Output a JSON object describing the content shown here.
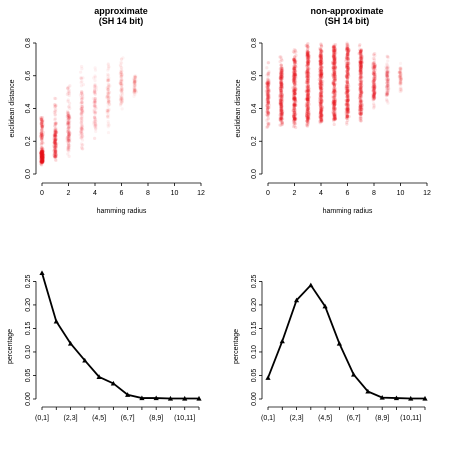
{
  "chart_data": [
    {
      "type": "scatter",
      "title": "approximate",
      "subtitle": "(SH 14 bit)",
      "xlabel": "hamming radius",
      "ylabel": "euclidean distance",
      "xlim": [
        0,
        12
      ],
      "ylim": [
        0,
        0.8
      ],
      "xticks": [
        0,
        2,
        4,
        6,
        8,
        10,
        12
      ],
      "yticks": [
        0.0,
        0.2,
        0.4,
        0.6,
        0.8
      ],
      "color": "#e8141c",
      "grid": false,
      "columns": [
        {
          "x": 0,
          "ymin": 0.05,
          "ymax": 0.35,
          "dense_min": 0.07,
          "dense_max": 0.14,
          "intensity": 1.0
        },
        {
          "x": 1,
          "ymin": 0.08,
          "ymax": 0.47,
          "dense_min": 0.1,
          "dense_max": 0.26,
          "intensity": 0.55
        },
        {
          "x": 2,
          "ymin": 0.1,
          "ymax": 0.55,
          "dense_min": 0.15,
          "dense_max": 0.38,
          "intensity": 0.35
        },
        {
          "x": 3,
          "ymin": 0.15,
          "ymax": 0.68,
          "dense_min": 0.22,
          "dense_max": 0.5,
          "intensity": 0.22
        },
        {
          "x": 4,
          "ymin": 0.2,
          "ymax": 0.65,
          "dense_min": 0.28,
          "dense_max": 0.55,
          "intensity": 0.15
        },
        {
          "x": 5,
          "ymin": 0.25,
          "ymax": 0.72,
          "dense_min": 0.35,
          "dense_max": 0.6,
          "intensity": 0.12
        },
        {
          "x": 6,
          "ymin": 0.35,
          "ymax": 0.72,
          "dense_min": 0.42,
          "dense_max": 0.62,
          "intensity": 0.12
        },
        {
          "x": 7,
          "ymin": 0.45,
          "ymax": 0.62,
          "dense_min": 0.5,
          "dense_max": 0.6,
          "intensity": 0.05
        }
      ]
    },
    {
      "type": "scatter",
      "title": "non-approximate",
      "subtitle": "(SH 14 bit)",
      "xlabel": "hamming radius",
      "ylabel": "euclidean distance",
      "xlim": [
        0,
        12
      ],
      "ylim": [
        0,
        0.8
      ],
      "xticks": [
        0,
        2,
        4,
        6,
        8,
        10,
        12
      ],
      "yticks": [
        0.0,
        0.2,
        0.4,
        0.6,
        0.8
      ],
      "color": "#e8141c",
      "grid": false,
      "columns": [
        {
          "x": 0,
          "ymin": 0.28,
          "ymax": 0.68,
          "dense_min": 0.36,
          "dense_max": 0.58,
          "intensity": 0.55
        },
        {
          "x": 1,
          "ymin": 0.28,
          "ymax": 0.72,
          "dense_min": 0.33,
          "dense_max": 0.65,
          "intensity": 0.85
        },
        {
          "x": 2,
          "ymin": 0.28,
          "ymax": 0.76,
          "dense_min": 0.32,
          "dense_max": 0.7,
          "intensity": 0.95
        },
        {
          "x": 3,
          "ymin": 0.28,
          "ymax": 0.8,
          "dense_min": 0.32,
          "dense_max": 0.75,
          "intensity": 1.0
        },
        {
          "x": 4,
          "ymin": 0.3,
          "ymax": 0.8,
          "dense_min": 0.32,
          "dense_max": 0.76,
          "intensity": 1.0
        },
        {
          "x": 5,
          "ymin": 0.3,
          "ymax": 0.8,
          "dense_min": 0.33,
          "dense_max": 0.78,
          "intensity": 1.0
        },
        {
          "x": 6,
          "ymin": 0.3,
          "ymax": 0.8,
          "dense_min": 0.34,
          "dense_max": 0.78,
          "intensity": 0.95
        },
        {
          "x": 7,
          "ymin": 0.32,
          "ymax": 0.8,
          "dense_min": 0.36,
          "dense_max": 0.76,
          "intensity": 0.9
        },
        {
          "x": 8,
          "ymin": 0.38,
          "ymax": 0.74,
          "dense_min": 0.45,
          "dense_max": 0.68,
          "intensity": 0.55
        },
        {
          "x": 9,
          "ymin": 0.42,
          "ymax": 0.72,
          "dense_min": 0.48,
          "dense_max": 0.65,
          "intensity": 0.25
        },
        {
          "x": 10,
          "ymin": 0.5,
          "ymax": 0.68,
          "dense_min": 0.55,
          "dense_max": 0.65,
          "intensity": 0.08
        }
      ]
    },
    {
      "type": "line",
      "title": "",
      "ylabel": "percentage",
      "xlabel": "",
      "categories": [
        "(0,1]",
        "(1,2]",
        "(2,3]",
        "(3,4]",
        "(4,5]",
        "(5,6]",
        "(6,7]",
        "(7,8]",
        "(8,9]",
        "(9,10]",
        "(10,11]",
        "(11,12]"
      ],
      "tick_labels_shown": [
        "(0,1]",
        "(2,3]",
        "(4,5]",
        "(6,7]",
        "(8,9]",
        "(10,11]"
      ],
      "yticks": [
        0.0,
        0.05,
        0.1,
        0.15,
        0.2,
        0.25
      ],
      "ylim": [
        0,
        0.27
      ],
      "series": [
        {
          "marker": "triangle",
          "values": [
            0.268,
            0.165,
            0.118,
            0.082,
            0.047,
            0.033,
            0.009,
            0.002,
            0.002,
            0.001,
            0.001,
            0.001
          ]
        }
      ]
    },
    {
      "type": "line",
      "title": "",
      "ylabel": "percentage",
      "xlabel": "",
      "categories": [
        "(0,1]",
        "(1,2]",
        "(2,3]",
        "(3,4]",
        "(4,5]",
        "(5,6]",
        "(6,7]",
        "(7,8]",
        "(8,9]",
        "(9,10]",
        "(10,11]",
        "(11,12]"
      ],
      "tick_labels_shown": [
        "(0,1]",
        "(2,3]",
        "(4,5]",
        "(6,7]",
        "(8,9]",
        "(10,11]"
      ],
      "yticks": [
        0.0,
        0.05,
        0.1,
        0.15,
        0.2,
        0.25
      ],
      "ylim": [
        0,
        0.27
      ],
      "series": [
        {
          "marker": "triangle",
          "values": [
            0.045,
            0.123,
            0.21,
            0.242,
            0.197,
            0.118,
            0.052,
            0.016,
            0.003,
            0.002,
            0.001,
            0.001
          ]
        }
      ]
    }
  ]
}
